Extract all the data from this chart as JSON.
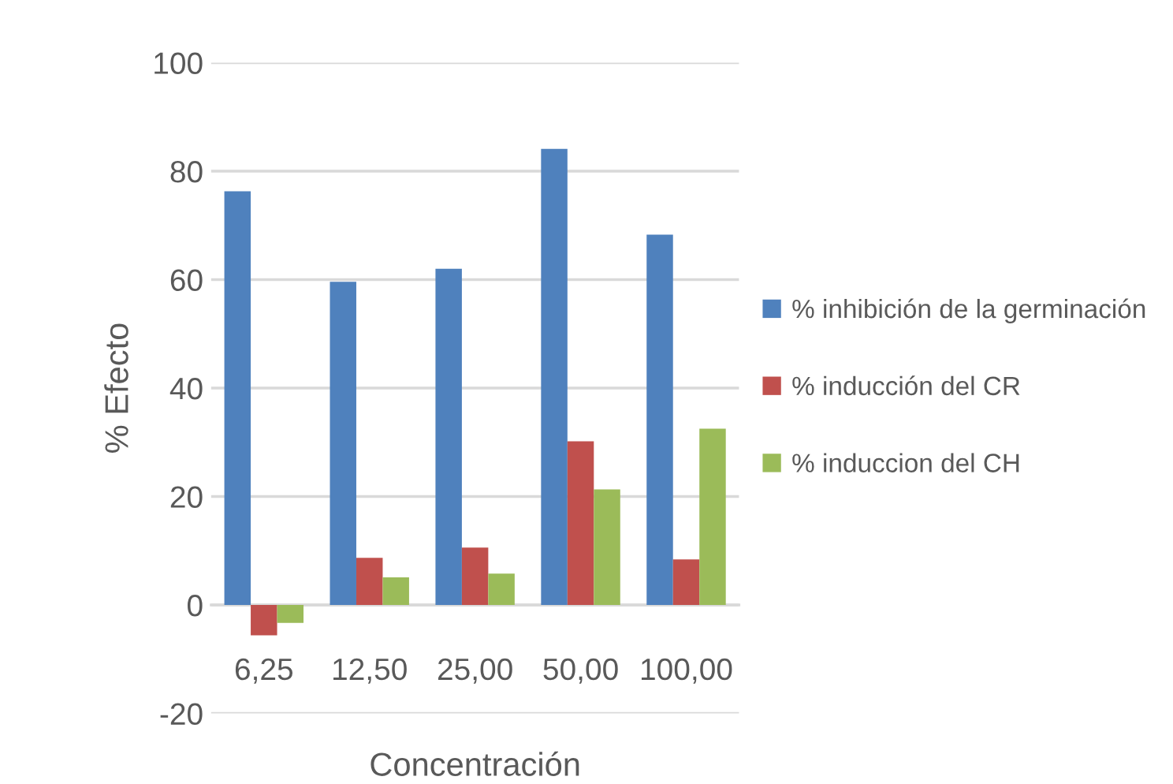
{
  "chart_data": {
    "type": "bar",
    "xlabel": "Concentración",
    "ylabel": "% Efecto",
    "categories": [
      "6,25",
      "12,50",
      "25,00",
      "50,00",
      "100,00"
    ],
    "series": [
      {
        "name": "% inhibición de la germinación",
        "color": "#4f81bd",
        "values": [
          76.3,
          59.6,
          62.0,
          84.1,
          68.3
        ]
      },
      {
        "name": "% inducción del CR",
        "color": "#c0504d",
        "values": [
          -5.6,
          8.7,
          10.6,
          30.2,
          8.4
        ]
      },
      {
        "name": "% induccion del CH",
        "color": "#9bbb59",
        "values": [
          -3.3,
          5.1,
          5.8,
          21.3,
          32.5
        ]
      }
    ],
    "ylim": [
      -20,
      100
    ],
    "yticks": [
      -20,
      0,
      20,
      40,
      60,
      80,
      100
    ],
    "grid": "y",
    "legend": "right"
  }
}
